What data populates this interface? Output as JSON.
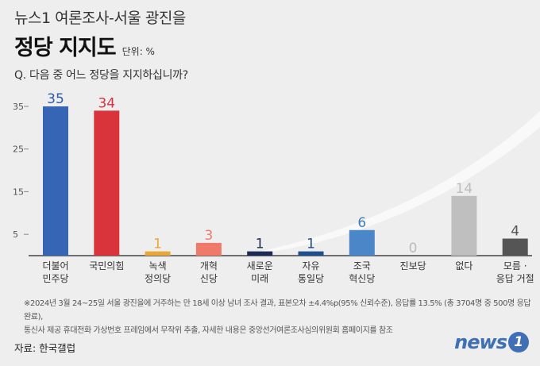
{
  "header": {
    "subtitle": "뉴스1 여론조사-서울 광진을",
    "title": "정당 지지도",
    "unit": "단위: %",
    "question": "Q. 다음 중 어느 정당을 지지하십니까?"
  },
  "chart_data": {
    "type": "bar",
    "categories": [
      [
        "더불어",
        "민주당"
      ],
      [
        "국민의힘"
      ],
      [
        "녹색",
        "정의당"
      ],
      [
        "개혁",
        "신당"
      ],
      [
        "새로운",
        "미래"
      ],
      [
        "자유",
        "통일당"
      ],
      [
        "조국",
        "혁신당"
      ],
      [
        "진보당"
      ],
      [
        "없다"
      ],
      [
        "모름 ·",
        "응답 거절"
      ]
    ],
    "values": [
      35,
      34,
      1,
      3,
      1,
      1,
      6,
      0,
      14,
      4
    ],
    "value_labels": [
      "35",
      "34",
      "1",
      "3",
      "1",
      "1",
      "6",
      "0",
      "14",
      "4"
    ],
    "colors": [
      "#3565b4",
      "#d9343c",
      "#e8a838",
      "#f07a6a",
      "#1c2a55",
      "#1f4f8c",
      "#4b86c8",
      "#bbbbbb",
      "#bfbfbf",
      "#555555"
    ],
    "label_colors": [
      "#2b5aa8",
      "#d6333b",
      "#e8a838",
      "#f07a6a",
      "#1c2a55",
      "#1f4f8c",
      "#3e7cc0",
      "#bbbbbb",
      "#bdbdbd",
      "#555555"
    ],
    "yticks": [
      5,
      15,
      25,
      35
    ],
    "ylim": [
      0,
      35
    ],
    "grid": false
  },
  "footnote": {
    "line1": "※2024년 3월 24~25일 서울 광진을에 거주하는 만 18세 이상 남녀 조사 결과, 표본오차 ±4.4%p(95% 신뢰수준), 응답률 13.5% (총 3704명 중 500명 응답 완료),",
    "line2": "통신사 제공 휴대전화 가상번호 프레임에서 무작위 추출, 자세한 내용은 중앙선거여론조사심의위원회 홈페이지를 참조"
  },
  "source": "자료: 한국갤럽",
  "logo": {
    "text": "news",
    "badge": "1"
  }
}
